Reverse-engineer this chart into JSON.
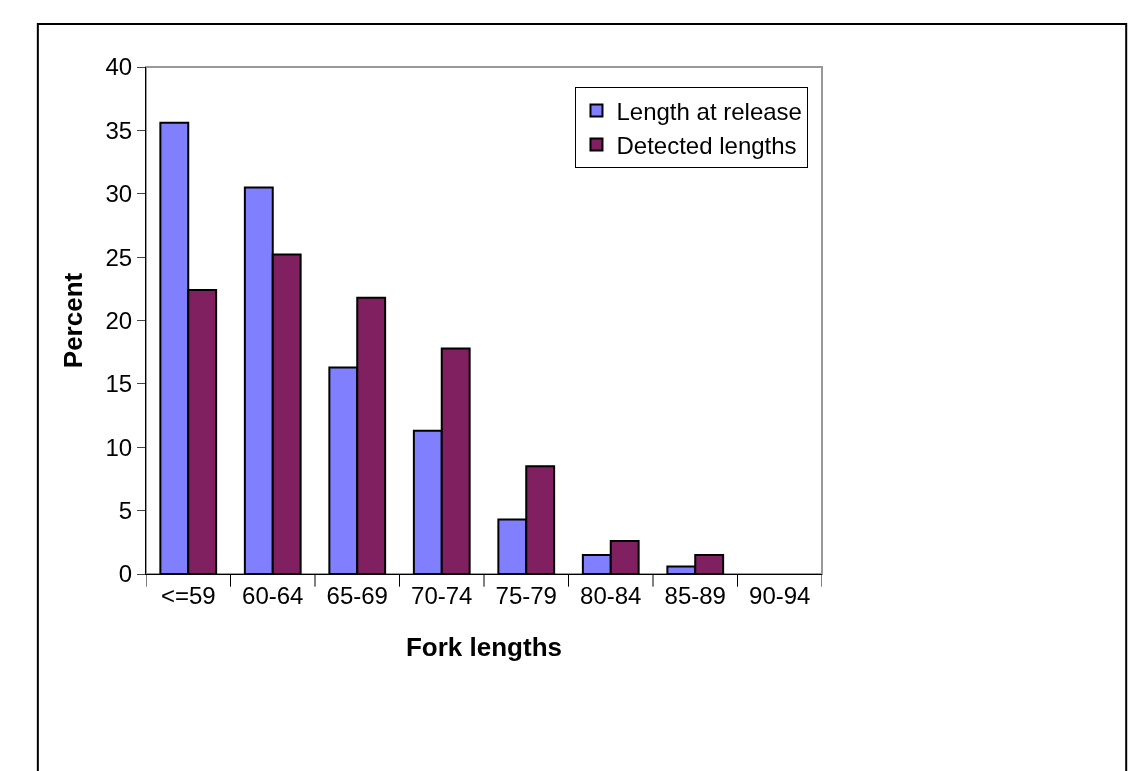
{
  "chart_data": {
    "type": "bar",
    "xlabel": "Fork lengths",
    "ylabel": "Percent",
    "categories": [
      "<=59",
      "60-64",
      "65-69",
      "70-74",
      "75-79",
      "80-84",
      "85-89",
      "90-94"
    ],
    "series": [
      {
        "name": "Length at release",
        "color": "#8080ff",
        "values": [
          35.6,
          30.5,
          16.3,
          11.3,
          4.3,
          1.5,
          0.6,
          0
        ]
      },
      {
        "name": "Detected lengths",
        "color": "#802060",
        "values": [
          22.4,
          25.2,
          21.8,
          17.8,
          8.5,
          2.6,
          1.5,
          0
        ]
      }
    ],
    "ylim": [
      0,
      40
    ],
    "yticks": [
      0,
      5,
      10,
      15,
      20,
      25,
      30,
      35,
      40
    ],
    "grid": false,
    "legend": "top right"
  }
}
